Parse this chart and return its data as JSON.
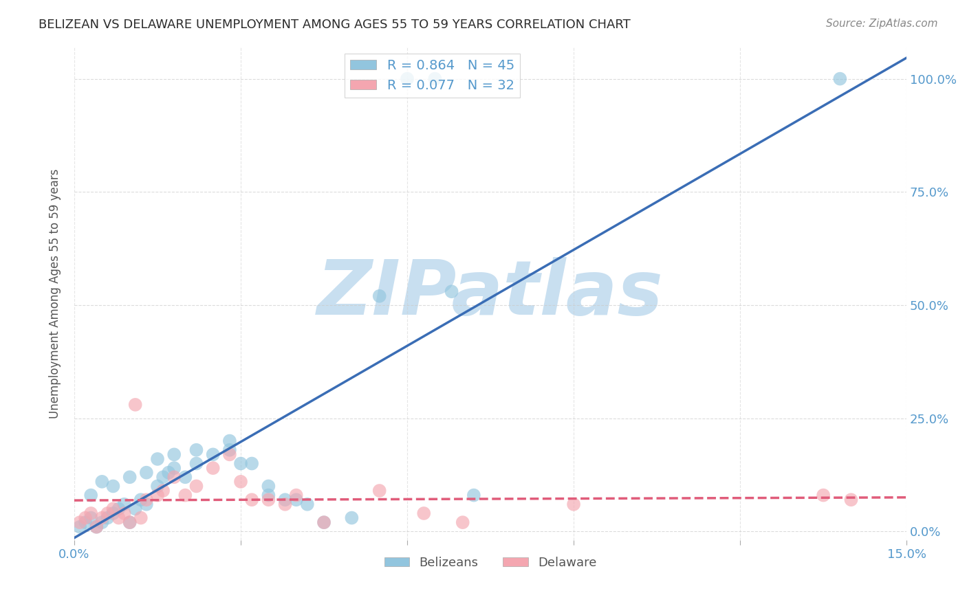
{
  "title": "BELIZEAN VS DELAWARE UNEMPLOYMENT AMONG AGES 55 TO 59 YEARS CORRELATION CHART",
  "source": "Source: ZipAtlas.com",
  "ylabel": "Unemployment Among Ages 55 to 59 years",
  "xlim": [
    0.0,
    0.15
  ],
  "ylim": [
    -0.02,
    1.07
  ],
  "belizean_R": 0.864,
  "belizean_N": 45,
  "delaware_R": 0.077,
  "delaware_N": 32,
  "belizean_color": "#92c5de",
  "delaware_color": "#f4a6b0",
  "belizean_line_color": "#3a6db5",
  "delaware_line_color": "#e05c7a",
  "title_color": "#2c2c2c",
  "axis_color": "#5599cc",
  "watermark": "ZIPatlas",
  "watermark_color": "#c8dff0",
  "bel_x": [
    0.001,
    0.002,
    0.003,
    0.004,
    0.005,
    0.006,
    0.007,
    0.008,
    0.009,
    0.01,
    0.011,
    0.012,
    0.013,
    0.015,
    0.016,
    0.017,
    0.018,
    0.02,
    0.022,
    0.025,
    0.028,
    0.03,
    0.035,
    0.04,
    0.045,
    0.05,
    0.003,
    0.005,
    0.007,
    0.01,
    0.013,
    0.015,
    0.018,
    0.022,
    0.028,
    0.032,
    0.035,
    0.038,
    0.042,
    0.055,
    0.06,
    0.065,
    0.068,
    0.072,
    0.138
  ],
  "bel_y": [
    0.01,
    0.02,
    0.03,
    0.01,
    0.02,
    0.03,
    0.04,
    0.05,
    0.06,
    0.02,
    0.05,
    0.07,
    0.06,
    0.1,
    0.12,
    0.13,
    0.14,
    0.12,
    0.15,
    0.17,
    0.18,
    0.15,
    0.08,
    0.07,
    0.02,
    0.03,
    0.08,
    0.11,
    0.1,
    0.12,
    0.13,
    0.16,
    0.17,
    0.18,
    0.2,
    0.15,
    0.1,
    0.07,
    0.06,
    0.52,
    1.0,
    1.0,
    0.53,
    0.08,
    1.0
  ],
  "del_x": [
    0.001,
    0.002,
    0.003,
    0.004,
    0.005,
    0.006,
    0.007,
    0.008,
    0.009,
    0.01,
    0.011,
    0.012,
    0.013,
    0.015,
    0.016,
    0.018,
    0.02,
    0.022,
    0.025,
    0.028,
    0.03,
    0.032,
    0.035,
    0.038,
    0.04,
    0.045,
    0.055,
    0.063,
    0.07,
    0.09,
    0.135,
    0.14
  ],
  "del_y": [
    0.02,
    0.03,
    0.04,
    0.01,
    0.03,
    0.04,
    0.05,
    0.03,
    0.04,
    0.02,
    0.28,
    0.03,
    0.07,
    0.08,
    0.09,
    0.12,
    0.08,
    0.1,
    0.14,
    0.17,
    0.11,
    0.07,
    0.07,
    0.06,
    0.08,
    0.02,
    0.09,
    0.04,
    0.02,
    0.06,
    0.08,
    0.07
  ],
  "background_color": "#ffffff",
  "grid_color": "#cccccc"
}
